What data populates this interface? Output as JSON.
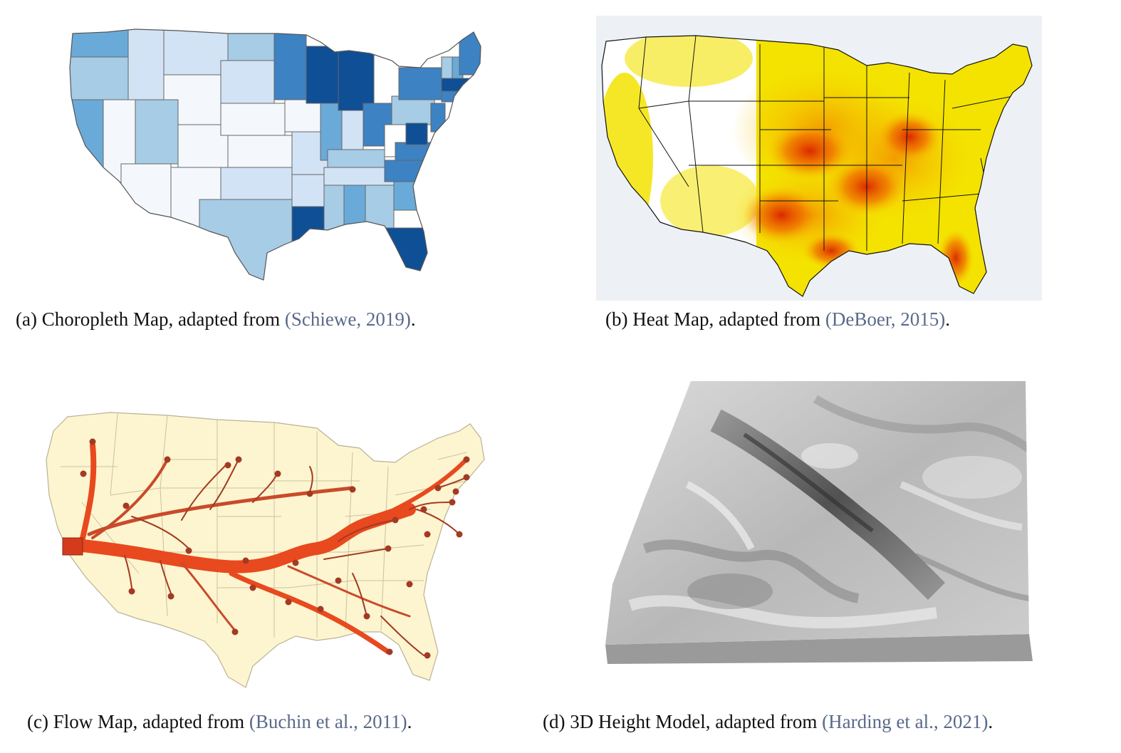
{
  "figure": {
    "panels": [
      {
        "id": "a",
        "map_type": "choropleth",
        "caption_prefix": "(a) Choropleth Map, adapted from ",
        "citation": "(Schiewe, 2019)",
        "caption_suffix": ".",
        "palette": [
          "#f4f8fd",
          "#d2e3f5",
          "#a6cce6",
          "#6aaad9",
          "#3d82c2",
          "#0f4f96"
        ]
      },
      {
        "id": "b",
        "map_type": "heat map",
        "caption_prefix": "(b) Heat Map, adapted from ",
        "citation": "(DeBoer, 2015)",
        "caption_suffix": ".",
        "palette": [
          "#ffffff",
          "#f5f000",
          "#f7b500",
          "#ef5a00",
          "#d81800"
        ]
      },
      {
        "id": "c",
        "map_type": "flow map",
        "caption_prefix": "(c) Flow Map, adapted from ",
        "citation": "(Buchin et al., 2011)",
        "caption_suffix": ".",
        "palette": [
          "#fdf5cf",
          "#e8491e",
          "#a33a23"
        ]
      },
      {
        "id": "d",
        "map_type": "3D height model",
        "caption_prefix": "(d) 3D Height Model, adapted from ",
        "citation": "(Harding et al., 2021)",
        "caption_suffix": ".",
        "palette": [
          "#e9e9e9",
          "#a9a9a9",
          "#4d4d4d"
        ]
      }
    ]
  }
}
